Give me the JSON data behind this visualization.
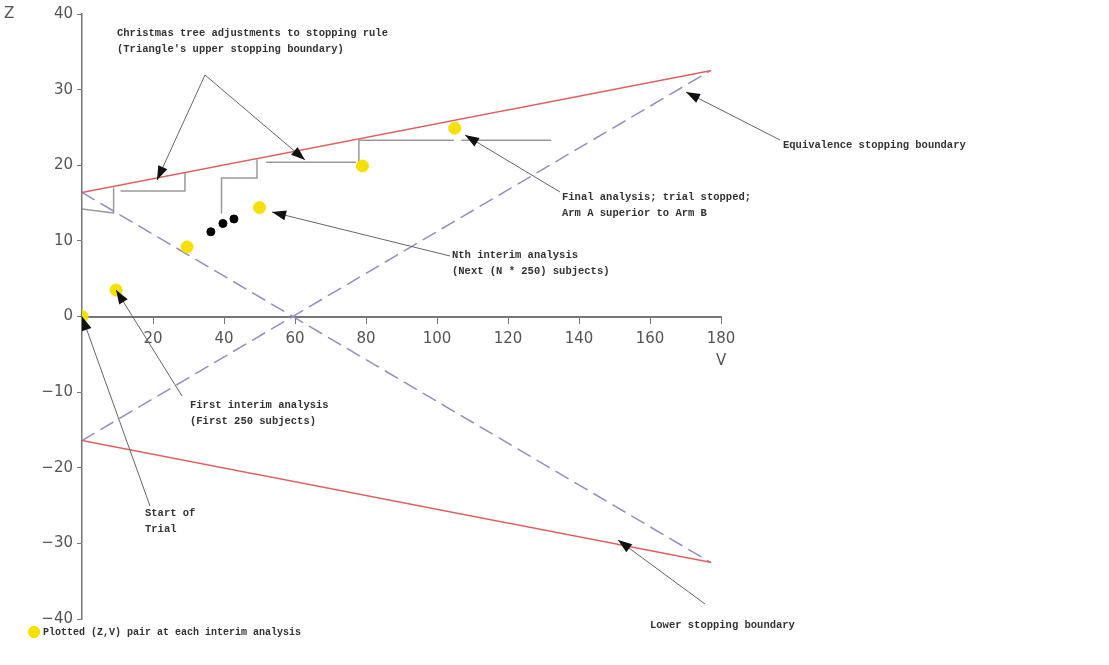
{
  "chart_data": {
    "type": "line",
    "xlabel": "V",
    "ylabel": "Z",
    "xlim": [
      0,
      180
    ],
    "xticks": [
      20,
      40,
      60,
      80,
      100,
      120,
      140,
      160,
      180
    ],
    "ylim": [
      -40,
      40
    ],
    "yticks": [
      -40,
      -30,
      -20,
      -10,
      0,
      10,
      20,
      30,
      40
    ],
    "grid": false,
    "legend": "bottom",
    "series": [
      {
        "color": "#e06060",
        "x": [
          0,
          177
        ],
        "values": [
          16.4,
          32.5
        ],
        "line_style": "solid",
        "marker": "none"
      },
      {
        "color": "#e06060",
        "x": [
          0,
          177
        ],
        "values": [
          -16.4,
          -32.5
        ],
        "line_style": "solid",
        "marker": "none"
      },
      {
        "color": "#9090c0",
        "x": [
          0,
          177
        ],
        "values": [
          16.4,
          -32.5
        ],
        "line_style": "dashed",
        "marker": "none"
      },
      {
        "color": "#9090c0",
        "x": [
          0,
          177
        ],
        "values": [
          -16.4,
          32.5
        ],
        "line_style": "dashed",
        "marker": "none"
      },
      {
        "color": "#999999",
        "x": [
          0,
          8.9,
          8.9
        ],
        "values": [
          14.2,
          13.7,
          17.0
        ],
        "line_style": "solid",
        "marker": "none"
      },
      {
        "color": "#999999",
        "x": [
          11,
          29,
          29
        ],
        "values": [
          16.6,
          16.6,
          19.0
        ],
        "line_style": "solid",
        "marker": "none"
      },
      {
        "color": "#999999",
        "x": [
          39.3,
          39.3,
          49.3,
          49.3
        ],
        "values": [
          13.7,
          18.3,
          18.3,
          20.7
        ],
        "line_style": "solid",
        "marker": "none"
      },
      {
        "color": "#999999",
        "x": [
          52,
          77
        ],
        "values": [
          20.4,
          20.4
        ],
        "line_style": "solid",
        "marker": "none"
      },
      {
        "color": "#999999",
        "x": [
          78,
          78,
          104.6
        ],
        "values": [
          20.5,
          23.3,
          23.3
        ],
        "line_style": "solid",
        "marker": "none"
      },
      {
        "color": "#999999",
        "x": [
          107,
          132
        ],
        "values": [
          23.3,
          23.3
        ],
        "line_style": "solid",
        "marker": "none"
      },
      {
        "type": "scatter",
        "name": "Plotted (Z,V) pair at each interim analysis",
        "color": "#f5e000",
        "x": [
          0,
          9.6,
          29.6,
          50,
          79,
          105
        ],
        "values": [
          0,
          3.5,
          9.2,
          14.4,
          19.9,
          24.9
        ],
        "marker": "circle"
      },
      {
        "type": "scatter",
        "color": "#000000",
        "x": [
          36.3,
          39.7,
          42.8
        ],
        "values": [
          11.2,
          12.3,
          12.9
        ],
        "marker": "circle"
      }
    ],
    "annotations": [
      "Christmas tree adjustments to stopping rule\n(Triangle's upper stopping boundary)",
      "Equivalence stopping boundary",
      "Final analysis; trial stopped;\nArm A superior to Arm B",
      "Nth interim analysis\n(Next (N * 250) subjects)",
      {
        "text": "First interim analysis\n(First 250 subjects)",
        "x": 9.6,
        "y": 3.5
      },
      {
        "text": "Start of\nTrial",
        "x": 0,
        "y": 0
      },
      "Lower stopping boundary"
    ]
  }
}
